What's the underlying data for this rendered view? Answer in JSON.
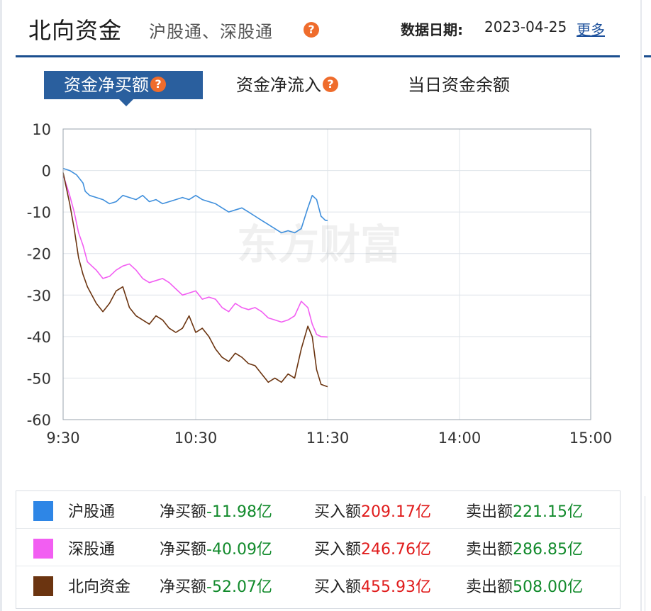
{
  "header": {
    "title": "北向资金",
    "subtitle": "沪股通、深股通",
    "help_icon": "question-icon",
    "date_label": "数据日期:",
    "date_value": "2023-04-25",
    "more_link": "更多"
  },
  "tabs": [
    {
      "label": "资金净买额",
      "active": true,
      "has_help": true
    },
    {
      "label": "资金净流入",
      "active": false,
      "has_help": true
    },
    {
      "label": "当日资金余额",
      "active": false,
      "has_help": false
    }
  ],
  "watermark": "东方财富",
  "chart_data": {
    "type": "line",
    "x_ticks": [
      "9:30",
      "10:30",
      "11:30",
      "14:00",
      "15:00"
    ],
    "y_ticks": [
      "10",
      "0",
      "-10",
      "-20",
      "-30",
      "-40",
      "-50",
      "-60"
    ],
    "ylim": [
      -60,
      10
    ],
    "grid": true,
    "x_unit": "minutes since 9:30 (trading time)",
    "series": [
      {
        "name": "沪股通",
        "color": "#3f8fdc",
        "x": [
          0,
          3,
          6,
          9,
          10,
          12,
          15,
          18,
          21,
          24,
          27,
          30,
          33,
          36,
          39,
          42,
          45,
          48,
          51,
          54,
          57,
          60,
          63,
          66,
          69,
          72,
          75,
          78,
          81,
          84,
          87,
          90,
          93,
          96,
          99,
          102,
          105,
          108,
          111,
          113,
          115,
          117,
          119,
          120
        ],
        "values": [
          0.5,
          0,
          -1,
          -3,
          -5,
          -6,
          -6.5,
          -7,
          -8,
          -7.5,
          -6,
          -6.5,
          -7,
          -6,
          -7.5,
          -7,
          -8,
          -7.5,
          -7,
          -6.5,
          -7,
          -6,
          -7,
          -7.5,
          -8,
          -9,
          -10,
          -9.5,
          -9,
          -10,
          -11,
          -12,
          -13,
          -14,
          -15,
          -14.5,
          -15,
          -14,
          -9,
          -6,
          -7,
          -11,
          -12,
          -12
        ]
      },
      {
        "name": "深股通",
        "color": "#f25ef2",
        "x": [
          0,
          3,
          5,
          7,
          9,
          11,
          13,
          15,
          18,
          21,
          24,
          27,
          30,
          33,
          36,
          39,
          42,
          45,
          48,
          51,
          54,
          57,
          60,
          63,
          66,
          69,
          72,
          75,
          78,
          81,
          84,
          87,
          90,
          93,
          96,
          99,
          102,
          105,
          108,
          111,
          113,
          115,
          117,
          120
        ],
        "values": [
          -1,
          -6,
          -10,
          -15,
          -18,
          -22,
          -23,
          -24,
          -26,
          -25.5,
          -24,
          -23,
          -22.5,
          -24,
          -26,
          -27,
          -26.5,
          -26,
          -27,
          -28.5,
          -30,
          -29.5,
          -29,
          -31,
          -30.5,
          -31,
          -33,
          -34,
          -32,
          -33,
          -33.5,
          -33,
          -34,
          -35.5,
          -36,
          -36.5,
          -36,
          -35,
          -31.5,
          -33,
          -37,
          -39.5,
          -40,
          -40.1
        ]
      },
      {
        "name": "北向资金",
        "color": "#6b3410",
        "x": [
          0,
          3,
          5,
          7,
          9,
          11,
          13,
          15,
          18,
          21,
          24,
          27,
          30,
          33,
          36,
          39,
          42,
          45,
          48,
          51,
          54,
          57,
          60,
          63,
          66,
          69,
          72,
          75,
          78,
          81,
          84,
          87,
          90,
          93,
          96,
          99,
          102,
          105,
          108,
          111,
          113,
          115,
          117,
          120
        ],
        "values": [
          -0.5,
          -8,
          -14,
          -21,
          -25,
          -28,
          -30,
          -32,
          -34,
          -32,
          -29,
          -28,
          -33,
          -35,
          -36,
          -37,
          -35,
          -36,
          -38,
          -39,
          -38,
          -35,
          -39,
          -38,
          -40,
          -43,
          -45,
          -46,
          -44,
          -45,
          -46.5,
          -47,
          -49,
          -51,
          -50,
          -51,
          -49,
          -50,
          -43,
          -37.5,
          -40,
          -48,
          -51.5,
          -52.07
        ]
      }
    ]
  },
  "legend": {
    "rows": [
      {
        "name": "沪股通",
        "color": "#2e86e6",
        "net_label": "净买额",
        "net_value": "-11.98亿",
        "buy_label": "买入额",
        "buy_value": "209.17亿",
        "sell_label": "卖出额",
        "sell_value": "221.15亿"
      },
      {
        "name": "深股通",
        "color": "#f25ef2",
        "net_label": "净买额",
        "net_value": "-40.09亿",
        "buy_label": "买入额",
        "buy_value": "246.76亿",
        "sell_label": "卖出额",
        "sell_value": "286.85亿"
      },
      {
        "name": "北向资金",
        "color": "#6b3410",
        "net_label": "净买额",
        "net_value": "-52.07亿",
        "buy_label": "买入额",
        "buy_value": "455.93亿",
        "sell_label": "卖出额",
        "sell_value": "508.00亿"
      }
    ]
  }
}
